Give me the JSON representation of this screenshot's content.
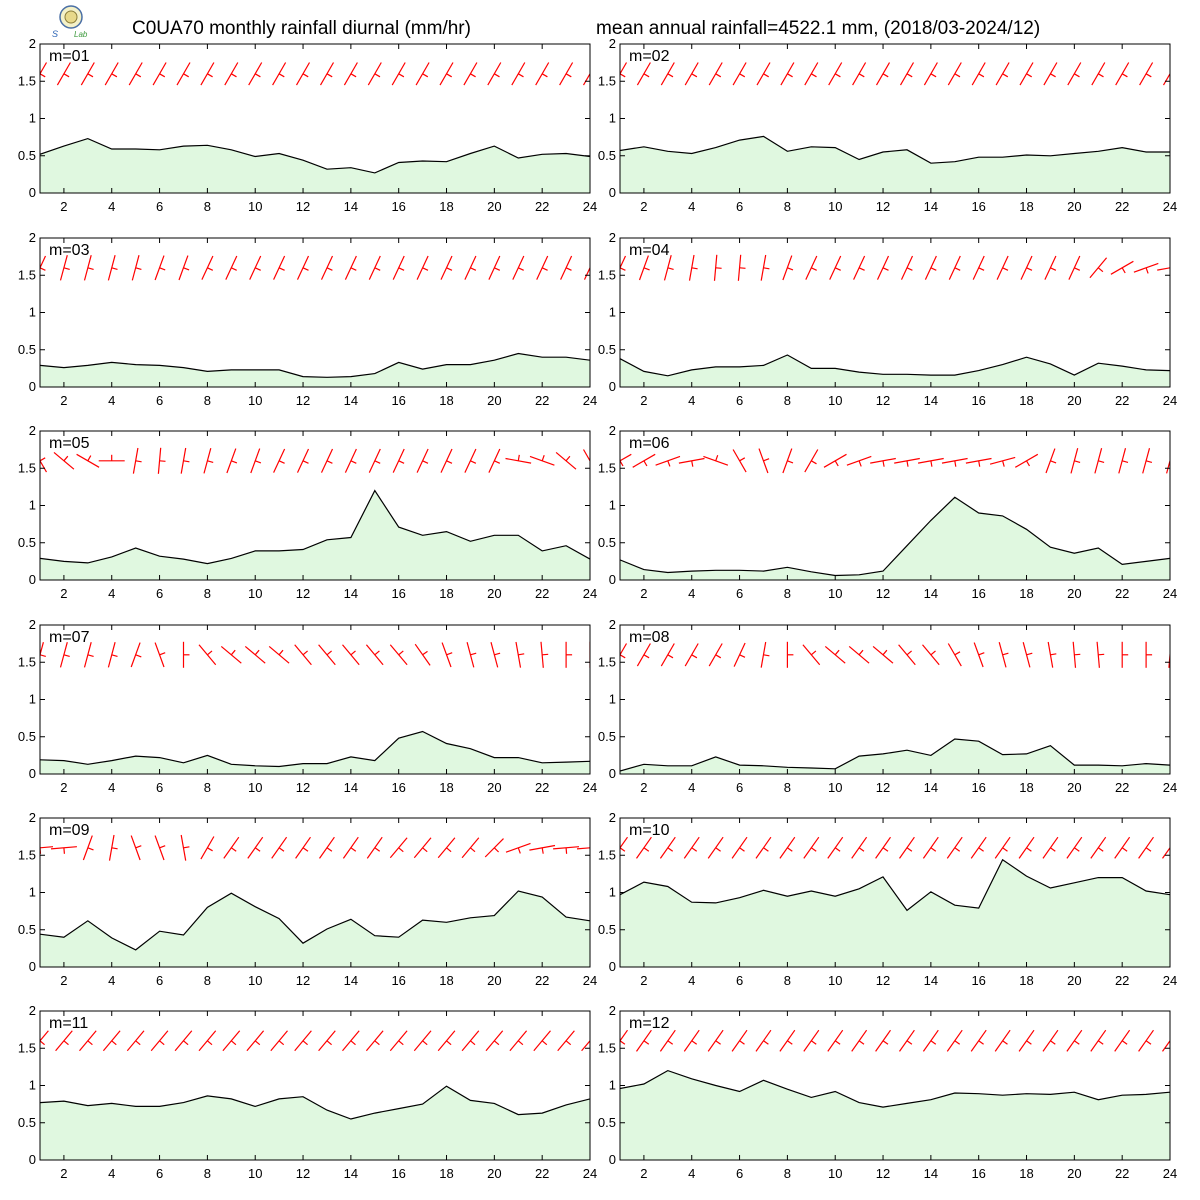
{
  "title_left": "C0UA70 monthly rainfall diurnal (mm/hr)",
  "title_right": "mean annual rainfall=4522.1 mm, (2018/03-2024/12)",
  "colors": {
    "fill": "#e0f8e0",
    "line": "#000000",
    "wind": "#ff0000",
    "frame": "#000000"
  },
  "chart_data": {
    "type": "area",
    "x": [
      1,
      2,
      3,
      4,
      5,
      6,
      7,
      8,
      9,
      10,
      11,
      12,
      13,
      14,
      15,
      16,
      17,
      18,
      19,
      20,
      21,
      22,
      23,
      24
    ],
    "xlim": [
      1,
      24
    ],
    "ylim": [
      0,
      2
    ],
    "xticks": [
      "2",
      "4",
      "6",
      "8",
      "10",
      "12",
      "14",
      "16",
      "18",
      "20",
      "22",
      "24"
    ],
    "yticks": [
      "0",
      "0.5",
      "1",
      "1.5",
      "2"
    ],
    "panels": [
      {
        "label": "m=01",
        "values": [
          0.52,
          0.63,
          0.73,
          0.59,
          0.59,
          0.58,
          0.63,
          0.64,
          0.58,
          0.49,
          0.53,
          0.44,
          0.32,
          0.34,
          0.27,
          0.41,
          0.43,
          0.42,
          0.53,
          0.63,
          0.47,
          0.52,
          0.53,
          0.49
        ],
        "wind": [
          30,
          30,
          30,
          30,
          30,
          30,
          30,
          30,
          30,
          30,
          30,
          30,
          30,
          30,
          30,
          30,
          30,
          30,
          30,
          30,
          30,
          30,
          30,
          30
        ]
      },
      {
        "label": "m=02",
        "values": [
          0.57,
          0.62,
          0.56,
          0.53,
          0.61,
          0.71,
          0.76,
          0.56,
          0.62,
          0.61,
          0.45,
          0.55,
          0.58,
          0.4,
          0.42,
          0.48,
          0.48,
          0.51,
          0.5,
          0.53,
          0.56,
          0.61,
          0.55,
          0.55
        ],
        "wind": [
          30,
          30,
          30,
          30,
          30,
          30,
          30,
          30,
          30,
          30,
          30,
          30,
          30,
          30,
          30,
          30,
          30,
          30,
          30,
          30,
          30,
          30,
          30,
          30
        ]
      },
      {
        "label": "m=03",
        "values": [
          0.29,
          0.26,
          0.29,
          0.33,
          0.3,
          0.29,
          0.26,
          0.21,
          0.23,
          0.23,
          0.23,
          0.14,
          0.13,
          0.14,
          0.18,
          0.33,
          0.24,
          0.3,
          0.3,
          0.36,
          0.45,
          0.4,
          0.4,
          0.36
        ],
        "wind": [
          25,
          15,
          15,
          15,
          15,
          20,
          20,
          25,
          25,
          25,
          25,
          25,
          25,
          25,
          25,
          25,
          25,
          25,
          25,
          25,
          25,
          25,
          25,
          25
        ]
      },
      {
        "label": "m=04",
        "values": [
          0.38,
          0.21,
          0.15,
          0.23,
          0.27,
          0.27,
          0.29,
          0.43,
          0.25,
          0.25,
          0.2,
          0.17,
          0.17,
          0.16,
          0.16,
          0.22,
          0.3,
          0.4,
          0.31,
          0.16,
          0.32,
          0.28,
          0.23,
          0.22
        ],
        "wind": [
          25,
          20,
          15,
          10,
          5,
          5,
          10,
          20,
          25,
          25,
          25,
          25,
          25,
          25,
          25,
          25,
          25,
          25,
          25,
          25,
          40,
          60,
          70,
          80
        ]
      },
      {
        "label": "m=05",
        "values": [
          0.29,
          0.25,
          0.23,
          0.31,
          0.43,
          0.32,
          0.28,
          0.22,
          0.29,
          0.39,
          0.39,
          0.41,
          0.54,
          0.57,
          1.2,
          0.71,
          0.6,
          0.65,
          0.52,
          0.6,
          0.6,
          0.39,
          0.46,
          0.28
        ],
        "wind": [
          -30,
          -50,
          -60,
          -90,
          10,
          5,
          10,
          15,
          20,
          20,
          25,
          25,
          25,
          25,
          25,
          25,
          25,
          25,
          25,
          25,
          -80,
          -70,
          -50,
          -30
        ]
      },
      {
        "label": "m=06",
        "values": [
          0.27,
          0.14,
          0.1,
          0.12,
          0.13,
          0.13,
          0.12,
          0.17,
          0.11,
          0.06,
          0.07,
          0.12,
          0.46,
          0.8,
          1.11,
          0.9,
          0.86,
          0.68,
          0.44,
          0.36,
          0.43,
          0.21,
          0.25,
          0.29
        ],
        "wind": [
          60,
          60,
          70,
          80,
          -70,
          -30,
          -20,
          20,
          30,
          60,
          70,
          80,
          80,
          80,
          80,
          80,
          75,
          60,
          20,
          15,
          15,
          15,
          15,
          15
        ]
      },
      {
        "label": "m=07",
        "values": [
          0.19,
          0.18,
          0.13,
          0.18,
          0.24,
          0.22,
          0.15,
          0.25,
          0.13,
          0.11,
          0.1,
          0.14,
          0.14,
          0.23,
          0.18,
          0.48,
          0.57,
          0.41,
          0.34,
          0.22,
          0.22,
          0.15,
          0.16,
          0.17
        ],
        "wind": [
          15,
          15,
          15,
          15,
          20,
          -20,
          0,
          -40,
          -50,
          -50,
          -50,
          -40,
          -40,
          -40,
          -40,
          -40,
          -35,
          -20,
          -15,
          -15,
          -10,
          -5,
          0,
          0
        ]
      },
      {
        "label": "m=08",
        "values": [
          0.04,
          0.13,
          0.11,
          0.11,
          0.23,
          0.12,
          0.11,
          0.09,
          0.08,
          0.07,
          0.24,
          0.27,
          0.32,
          0.25,
          0.47,
          0.44,
          0.26,
          0.27,
          0.38,
          0.12,
          0.12,
          0.11,
          0.14,
          0.12
        ],
        "wind": [
          30,
          30,
          30,
          30,
          30,
          25,
          10,
          0,
          -40,
          -50,
          -50,
          -50,
          -40,
          -40,
          -30,
          -20,
          -15,
          -15,
          -10,
          -5,
          -5,
          0,
          0,
          5
        ]
      },
      {
        "label": "m=09",
        "values": [
          0.44,
          0.4,
          0.62,
          0.39,
          0.23,
          0.48,
          0.43,
          0.8,
          0.99,
          0.81,
          0.65,
          0.32,
          0.51,
          0.64,
          0.42,
          0.4,
          0.63,
          0.6,
          0.66,
          0.69,
          1.02,
          0.94,
          0.67,
          0.62
        ],
        "wind": [
          85,
          85,
          20,
          10,
          -20,
          -20,
          -10,
          30,
          35,
          35,
          35,
          35,
          35,
          35,
          35,
          40,
          40,
          40,
          40,
          45,
          70,
          80,
          85,
          85
        ]
      },
      {
        "label": "m=10",
        "values": [
          0.97,
          1.14,
          1.08,
          0.87,
          0.86,
          0.93,
          1.03,
          0.95,
          1.02,
          0.95,
          1.05,
          1.21,
          0.76,
          1.01,
          0.83,
          0.79,
          1.44,
          1.22,
          1.06,
          1.13,
          1.2,
          1.2,
          1.02,
          0.97
        ],
        "wind": [
          35,
          35,
          35,
          35,
          35,
          35,
          35,
          35,
          35,
          35,
          35,
          35,
          35,
          35,
          35,
          35,
          35,
          35,
          35,
          35,
          35,
          35,
          35,
          35
        ]
      },
      {
        "label": "m=11",
        "values": [
          0.77,
          0.79,
          0.73,
          0.76,
          0.72,
          0.72,
          0.77,
          0.86,
          0.82,
          0.72,
          0.82,
          0.85,
          0.67,
          0.55,
          0.63,
          0.69,
          0.75,
          0.99,
          0.8,
          0.76,
          0.61,
          0.63,
          0.74,
          0.82
        ],
        "wind": [
          40,
          40,
          40,
          40,
          40,
          40,
          40,
          40,
          40,
          40,
          40,
          40,
          40,
          40,
          40,
          40,
          40,
          40,
          40,
          40,
          40,
          40,
          40,
          40
        ]
      },
      {
        "label": "m=12",
        "values": [
          0.96,
          1.02,
          1.2,
          1.09,
          1.0,
          0.92,
          1.07,
          0.95,
          0.84,
          0.92,
          0.77,
          0.71,
          0.76,
          0.81,
          0.9,
          0.89,
          0.87,
          0.89,
          0.88,
          0.91,
          0.81,
          0.87,
          0.88,
          0.91
        ],
        "wind": [
          35,
          35,
          35,
          35,
          35,
          35,
          35,
          35,
          35,
          35,
          35,
          35,
          35,
          35,
          35,
          35,
          35,
          35,
          35,
          35,
          35,
          35,
          35,
          35
        ]
      }
    ]
  }
}
